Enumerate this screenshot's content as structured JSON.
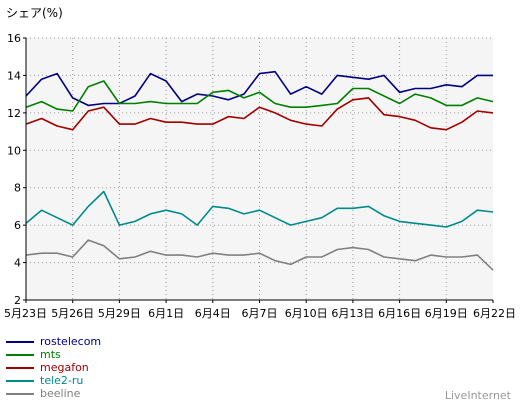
{
  "chart_data": {
    "type": "line",
    "ylabel": "シェア(%)",
    "ylim": [
      2,
      16
    ],
    "yticks": [
      2,
      4,
      6,
      8,
      10,
      12,
      14,
      16
    ],
    "x_tick_labels": [
      "5月23日",
      "5月26日",
      "5月29日",
      "6月1日",
      "6月4日",
      "6月7日",
      "6月10日",
      "6月13日",
      "6月16日",
      "6月19日",
      "6月22日"
    ],
    "grid": true,
    "legend_position": "bottom-left",
    "series": [
      {
        "name": "rostelecom",
        "color": "#000080",
        "values": [
          12.9,
          13.8,
          14.1,
          12.8,
          12.4,
          12.5,
          12.5,
          12.9,
          14.1,
          13.7,
          12.6,
          13.0,
          12.9,
          12.7,
          13.0,
          14.1,
          14.2,
          13.0,
          13.4,
          13.0,
          14.0,
          13.9,
          13.8,
          14.0,
          13.1,
          13.3,
          13.3,
          13.5,
          13.4,
          14.0,
          14.0
        ]
      },
      {
        "name": "mts",
        "color": "#008000",
        "values": [
          12.3,
          12.6,
          12.2,
          12.1,
          13.4,
          13.7,
          12.5,
          12.5,
          12.6,
          12.5,
          12.5,
          12.5,
          13.1,
          13.2,
          12.8,
          13.1,
          12.5,
          12.3,
          12.3,
          12.4,
          12.5,
          13.3,
          13.3,
          12.9,
          12.5,
          13.0,
          12.8,
          12.4,
          12.4,
          12.8,
          12.6
        ]
      },
      {
        "name": "megafon",
        "color": "#a00000",
        "values": [
          11.4,
          11.7,
          11.3,
          11.1,
          12.1,
          12.3,
          11.4,
          11.4,
          11.7,
          11.5,
          11.5,
          11.4,
          11.4,
          11.8,
          11.7,
          12.3,
          12.0,
          11.6,
          11.4,
          11.3,
          12.2,
          12.7,
          12.8,
          11.9,
          11.8,
          11.6,
          11.2,
          11.1,
          11.5,
          12.1,
          12.0
        ]
      },
      {
        "name": "tele2-ru",
        "color": "#008b8b",
        "values": [
          6.1,
          6.8,
          6.4,
          6.0,
          7.0,
          7.8,
          6.0,
          6.2,
          6.6,
          6.8,
          6.6,
          6.0,
          7.0,
          6.9,
          6.6,
          6.8,
          6.4,
          6.0,
          6.2,
          6.4,
          6.9,
          6.9,
          7.0,
          6.5,
          6.2,
          6.1,
          6.0,
          5.9,
          6.2,
          6.8,
          6.7
        ]
      },
      {
        "name": "beeline",
        "color": "#808080",
        "values": [
          4.4,
          4.5,
          4.5,
          4.3,
          5.2,
          4.9,
          4.2,
          4.3,
          4.6,
          4.4,
          4.4,
          4.3,
          4.5,
          4.4,
          4.4,
          4.5,
          4.1,
          3.9,
          4.3,
          4.3,
          4.7,
          4.8,
          4.7,
          4.3,
          4.2,
          4.1,
          4.4,
          4.3,
          4.3,
          4.4,
          3.6
        ]
      }
    ]
  },
  "footer": {
    "credit": "LiveInternet"
  },
  "legend_title_note": ""
}
